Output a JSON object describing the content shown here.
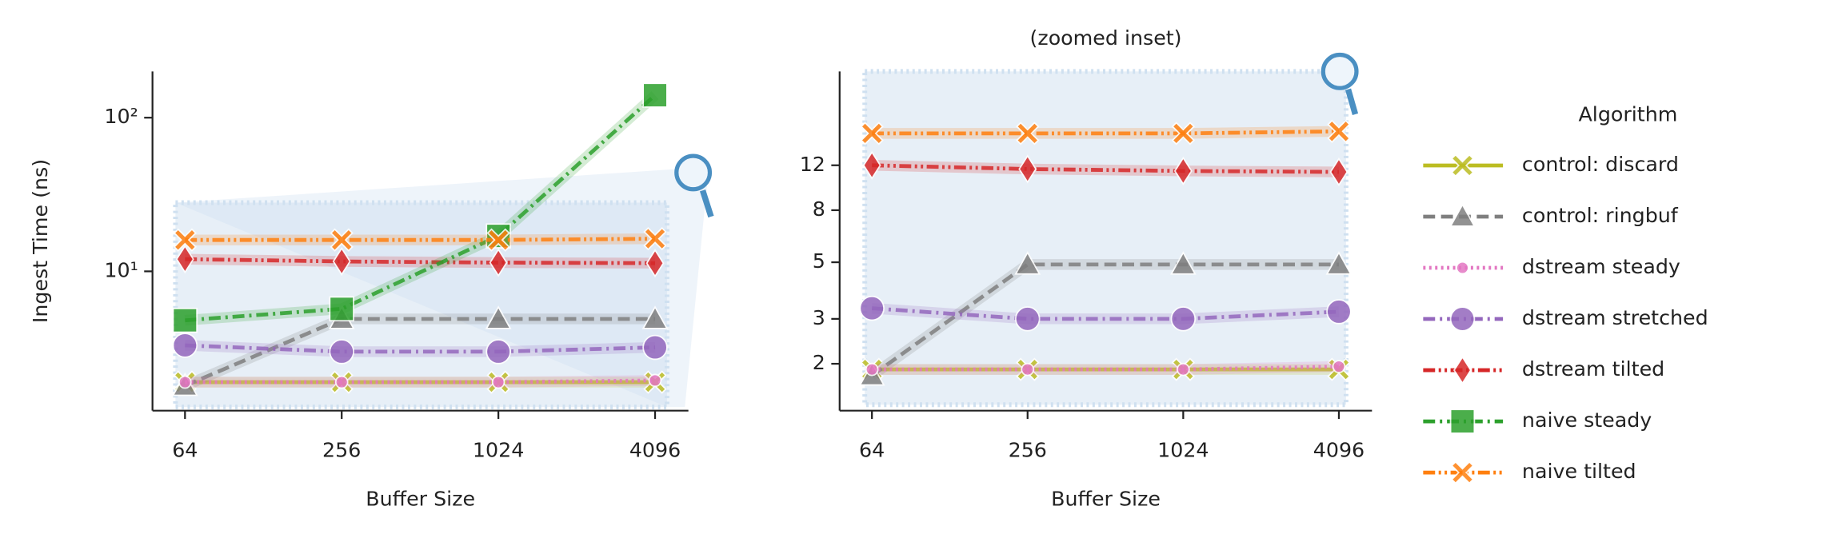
{
  "chart_data": [
    {
      "type": "line",
      "xlabel": "Buffer Size",
      "ylabel": "Ingest Time (ns)",
      "xscale": "log2",
      "yscale": "log",
      "x": [
        64,
        256,
        1024,
        4096
      ],
      "xlim": [
        48,
        5500
      ],
      "xticks": [
        64,
        256,
        1024,
        4096
      ],
      "ylim": [
        1.24,
        200
      ],
      "yticks": [
        {
          "value": 10,
          "label": "10¹"
        },
        {
          "value": 100,
          "label": "10²"
        }
      ],
      "legend_title": "Algorithm",
      "legend": "right",
      "series": [
        {
          "name": "control: discard",
          "color": "#bcbd22",
          "marker": "x",
          "dash": "solid",
          "values": [
            1.9,
            1.9,
            1.9,
            1.9
          ]
        },
        {
          "name": "control: ringbuf",
          "color": "#7f7f7f",
          "marker": "triangle",
          "dash": "dashed",
          "values": [
            1.8,
            4.9,
            4.9,
            4.9
          ]
        },
        {
          "name": "dstream steady",
          "color": "#e377c2",
          "marker": "dot",
          "dash": "dotted",
          "values": [
            1.9,
            1.9,
            1.9,
            1.95
          ]
        },
        {
          "name": "dstream stretched",
          "color": "#9467bd",
          "marker": "circle",
          "dash": "dashdot",
          "values": [
            3.3,
            3.0,
            3.0,
            3.2
          ]
        },
        {
          "name": "dstream tilted",
          "color": "#d62728",
          "marker": "diamond",
          "dash": "dashdotdot",
          "values": [
            12,
            11.6,
            11.4,
            11.3
          ]
        },
        {
          "name": "naive steady",
          "color": "#2ca02c",
          "marker": "square",
          "dash": "dashdot",
          "values": [
            4.8,
            5.7,
            17,
            140
          ]
        },
        {
          "name": "naive tilted",
          "color": "#ff7f0e",
          "marker": "x",
          "dash": "dashdotdot",
          "values": [
            16,
            16,
            16,
            16.3
          ]
        }
      ]
    },
    {
      "type": "line",
      "title": "(zoomed inset)",
      "xlabel": "Buffer Size",
      "xscale": "log2",
      "yscale": "log",
      "x": [
        64,
        256,
        1024,
        4096
      ],
      "xlim": [
        48,
        5500
      ],
      "xticks": [
        64,
        256,
        1024,
        4096
      ],
      "ylim": [
        1.31,
        28
      ],
      "yticks": [
        2,
        3,
        5,
        8,
        12
      ],
      "series": [
        {
          "name": "control: discard",
          "color": "#bcbd22",
          "marker": "x",
          "dash": "solid",
          "values": [
            1.9,
            1.9,
            1.9,
            1.9
          ]
        },
        {
          "name": "control: ringbuf",
          "color": "#7f7f7f",
          "marker": "triangle",
          "dash": "dashed",
          "values": [
            1.8,
            4.9,
            4.9,
            4.9
          ]
        },
        {
          "name": "dstream steady",
          "color": "#e377c2",
          "marker": "dot",
          "dash": "dotted",
          "values": [
            1.9,
            1.9,
            1.9,
            1.95
          ]
        },
        {
          "name": "dstream stretched",
          "color": "#9467bd",
          "marker": "circle",
          "dash": "dashdot",
          "values": [
            3.3,
            3.0,
            3.0,
            3.2
          ]
        },
        {
          "name": "dstream tilted",
          "color": "#d62728",
          "marker": "diamond",
          "dash": "dashdotdot",
          "values": [
            12,
            11.6,
            11.4,
            11.3
          ]
        },
        {
          "name": "naive tilted",
          "color": "#ff7f0e",
          "marker": "x",
          "dash": "dashdotdot",
          "values": [
            16,
            16,
            16,
            16.3
          ]
        }
      ]
    }
  ]
}
